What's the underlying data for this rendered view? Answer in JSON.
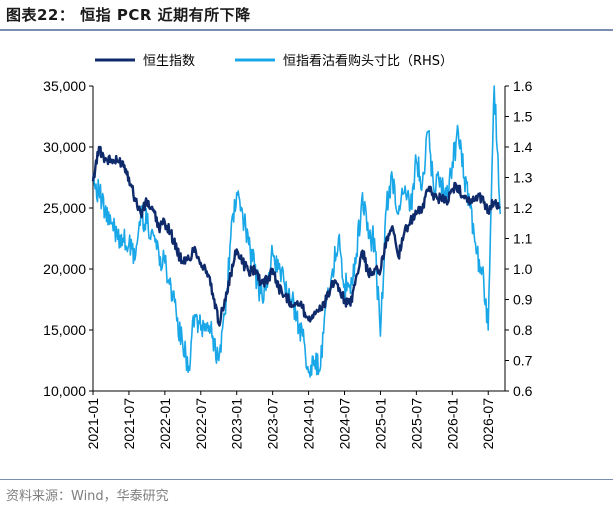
{
  "figure": {
    "title": "图表22：  恒指 PCR 近期有所下降",
    "source": "资料来源：Wind，华泰研究"
  },
  "colors": {
    "hsi": "#0f2a6b",
    "pcr": "#1aa7e8"
  },
  "chart_data": {
    "type": "line",
    "title": "",
    "legend": [
      "恒生指数",
      "恒指看沽看购头寸比（RHS）"
    ],
    "legend_position": "top",
    "x_ticks": [
      "2021-01",
      "2021-07",
      "2022-01",
      "2022-07",
      "2023-01",
      "2023-07",
      "2024-01",
      "2024-07",
      "2025-01",
      "2025-07",
      "2026-01",
      "2026-07"
    ],
    "y_left": {
      "ticks": [
        "10,000",
        "15,000",
        "20,000",
        "25,000",
        "30,000",
        "35,000"
      ],
      "range": [
        10000,
        35000
      ]
    },
    "y_right": {
      "ticks": [
        "0.6",
        "0.7",
        "0.8",
        "0.9",
        "1.0",
        "1.1",
        "1.2",
        "1.3",
        "1.4",
        "1.5",
        "1.6"
      ],
      "range": [
        0.6,
        1.6
      ]
    },
    "series": [
      {
        "name": "恒生指数",
        "axis": "left",
        "points": [
          [
            "2021-01",
            27200
          ],
          [
            "2021-02",
            30000
          ],
          [
            "2021-03",
            29000
          ],
          [
            "2021-04",
            28900
          ],
          [
            "2021-05",
            28800
          ],
          [
            "2021-06",
            28800
          ],
          [
            "2021-07",
            27500
          ],
          [
            "2021-08",
            25800
          ],
          [
            "2021-09",
            24500
          ],
          [
            "2021-10",
            25500
          ],
          [
            "2021-11",
            24800
          ],
          [
            "2021-12",
            23400
          ],
          [
            "2022-01",
            23800
          ],
          [
            "2022-02",
            23000
          ],
          [
            "2022-03",
            21500
          ],
          [
            "2022-04",
            20500
          ],
          [
            "2022-05",
            20800
          ],
          [
            "2022-06",
            21800
          ],
          [
            "2022-07",
            20500
          ],
          [
            "2022-08",
            19800
          ],
          [
            "2022-09",
            18000
          ],
          [
            "2022-10",
            15500
          ],
          [
            "2022-11",
            17500
          ],
          [
            "2022-12",
            19500
          ],
          [
            "2023-01",
            21600
          ],
          [
            "2023-02",
            20500
          ],
          [
            "2023-03",
            19800
          ],
          [
            "2023-04",
            20000
          ],
          [
            "2023-05",
            19000
          ],
          [
            "2023-06",
            19000
          ],
          [
            "2023-07",
            20000
          ],
          [
            "2023-08",
            18500
          ],
          [
            "2023-09",
            17800
          ],
          [
            "2023-10",
            17300
          ],
          [
            "2023-11",
            17200
          ],
          [
            "2023-12",
            16800
          ],
          [
            "2024-01",
            15800
          ],
          [
            "2024-02",
            16500
          ],
          [
            "2024-03",
            16600
          ],
          [
            "2024-04",
            17500
          ],
          [
            "2024-05",
            19000
          ],
          [
            "2024-06",
            18200
          ],
          [
            "2024-07",
            17500
          ],
          [
            "2024-08",
            17000
          ],
          [
            "2024-09",
            19500
          ],
          [
            "2024-10",
            21500
          ],
          [
            "2024-11",
            19500
          ],
          [
            "2024-12",
            20000
          ],
          [
            "2025-01",
            19800
          ],
          [
            "2025-02",
            22500
          ],
          [
            "2025-03",
            23500
          ],
          [
            "2025-04",
            21000
          ],
          [
            "2025-05",
            23000
          ],
          [
            "2025-06",
            24000
          ],
          [
            "2025-07",
            24500
          ],
          [
            "2025-08",
            25000
          ],
          [
            "2025-09",
            26500
          ],
          [
            "2025-10",
            26000
          ],
          [
            "2025-11",
            25800
          ],
          [
            "2025-12",
            25600
          ],
          [
            "2026-01",
            26500
          ],
          [
            "2026-02",
            26800
          ],
          [
            "2026-03",
            25800
          ],
          [
            "2026-04",
            25500
          ],
          [
            "2026-05",
            26000
          ],
          [
            "2026-06",
            25800
          ],
          [
            "2026-07",
            24800
          ],
          [
            "2026-08",
            25500
          ],
          [
            "2026-09",
            25000
          ]
        ]
      },
      {
        "name": "恒指看沽看购头寸比（RHS）",
        "axis": "right",
        "points": [
          [
            "2021-01",
            1.3
          ],
          [
            "2021-02",
            1.25
          ],
          [
            "2021-03",
            1.18
          ],
          [
            "2021-04",
            1.15
          ],
          [
            "2021-05",
            1.12
          ],
          [
            "2021-06",
            1.1
          ],
          [
            "2021-07",
            1.08
          ],
          [
            "2021-08",
            1.03
          ],
          [
            "2021-09",
            1.18
          ],
          [
            "2021-10",
            1.15
          ],
          [
            "2021-11",
            1.12
          ],
          [
            "2021-12",
            1.05
          ],
          [
            "2022-01",
            1.02
          ],
          [
            "2022-02",
            0.95
          ],
          [
            "2022-03",
            0.83
          ],
          [
            "2022-04",
            0.75
          ],
          [
            "2022-05",
            0.68
          ],
          [
            "2022-06",
            0.85
          ],
          [
            "2022-07",
            0.8
          ],
          [
            "2022-08",
            0.82
          ],
          [
            "2022-09",
            0.78
          ],
          [
            "2022-10",
            0.7
          ],
          [
            "2022-11",
            0.85
          ],
          [
            "2022-12",
            1.1
          ],
          [
            "2023-01",
            1.25
          ],
          [
            "2023-02",
            1.18
          ],
          [
            "2023-03",
            1.08
          ],
          [
            "2023-04",
            1.0
          ],
          [
            "2023-05",
            0.92
          ],
          [
            "2023-06",
            0.95
          ],
          [
            "2023-07",
            1.05
          ],
          [
            "2023-08",
            1.0
          ],
          [
            "2023-09",
            0.95
          ],
          [
            "2023-10",
            0.9
          ],
          [
            "2023-11",
            0.85
          ],
          [
            "2023-12",
            0.78
          ],
          [
            "2024-01",
            0.66
          ],
          [
            "2024-02",
            0.7
          ],
          [
            "2024-03",
            0.68
          ],
          [
            "2024-04",
            0.9
          ],
          [
            "2024-05",
            1.0
          ],
          [
            "2024-06",
            1.1
          ],
          [
            "2024-07",
            0.95
          ],
          [
            "2024-08",
            0.92
          ],
          [
            "2024-09",
            1.05
          ],
          [
            "2024-10",
            1.25
          ],
          [
            "2024-11",
            1.1
          ],
          [
            "2024-12",
            1.1
          ],
          [
            "2025-01",
            0.78
          ],
          [
            "2025-02",
            1.2
          ],
          [
            "2025-03",
            1.3
          ],
          [
            "2025-04",
            1.18
          ],
          [
            "2025-05",
            1.25
          ],
          [
            "2025-06",
            1.2
          ],
          [
            "2025-07",
            1.35
          ],
          [
            "2025-08",
            1.28
          ],
          [
            "2025-09",
            1.45
          ],
          [
            "2025-10",
            1.25
          ],
          [
            "2025-11",
            1.3
          ],
          [
            "2025-12",
            1.22
          ],
          [
            "2026-01",
            1.35
          ],
          [
            "2026-02",
            1.45
          ],
          [
            "2026-03",
            1.3
          ],
          [
            "2026-04",
            1.2
          ],
          [
            "2026-05",
            1.05
          ],
          [
            "2026-06",
            1.0
          ],
          [
            "2026-07",
            0.8
          ],
          [
            "2026-08",
            1.6
          ],
          [
            "2026-09",
            1.18
          ]
        ]
      }
    ]
  }
}
